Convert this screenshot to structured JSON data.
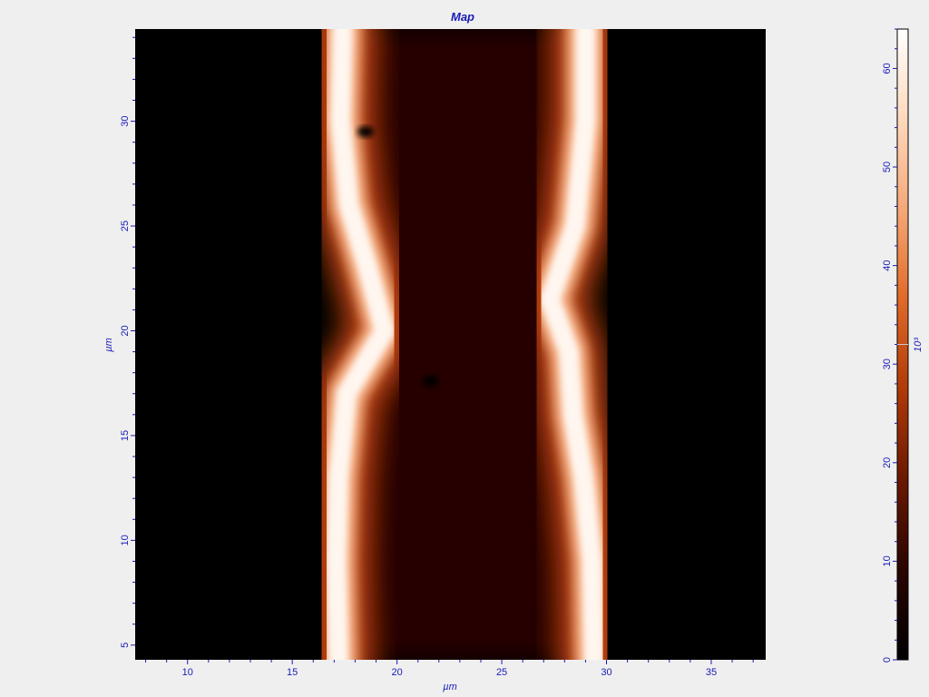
{
  "chart_data": {
    "type": "heatmap",
    "title": "Map",
    "xlabel": "µm",
    "ylabel": "µm",
    "xlim": [
      7.5,
      37.6
    ],
    "ylim": [
      4.3,
      34.4
    ],
    "x_ticks": [
      10,
      15,
      20,
      25,
      30,
      35
    ],
    "y_ticks": [
      5,
      10,
      15,
      20,
      25,
      30
    ],
    "colorbar": {
      "label": "10³",
      "range": [
        0,
        64
      ],
      "ticks": [
        0,
        10,
        20,
        30,
        40,
        50,
        60
      ],
      "marker_value": 32,
      "colormap": [
        "#000000",
        "#2a0500",
        "#6a1800",
        "#b03a08",
        "#e06a28",
        "#f5a878",
        "#ffd8bc",
        "#ffffff"
      ]
    },
    "features": {
      "left_band_center_x": [
        {
          "y": 4.3,
          "x": 17.2
        },
        {
          "y": 9,
          "x": 17.1
        },
        {
          "y": 13,
          "x": 17.2
        },
        {
          "y": 17,
          "x": 17.6
        },
        {
          "y": 20,
          "x": 19.4
        },
        {
          "y": 23,
          "x": 18.6
        },
        {
          "y": 26,
          "x": 17.7
        },
        {
          "y": 30,
          "x": 17.3
        },
        {
          "y": 34.4,
          "x": 17.4
        }
      ],
      "right_band_center_x": [
        {
          "y": 4.3,
          "x": 29.4
        },
        {
          "y": 9,
          "x": 29.3
        },
        {
          "y": 13,
          "x": 28.9
        },
        {
          "y": 16,
          "x": 28.4
        },
        {
          "y": 19,
          "x": 28.2
        },
        {
          "y": 21.5,
          "x": 27.3
        },
        {
          "y": 25,
          "x": 28.5
        },
        {
          "y": 30,
          "x": 29.0
        },
        {
          "y": 34.4,
          "x": 29.0
        }
      ],
      "band_peak_value": 62,
      "gap_value": 8,
      "background_value": 0,
      "dark_spots": [
        {
          "x": 18.5,
          "y": 29.5
        },
        {
          "x": 21.6,
          "y": 17.6
        }
      ]
    }
  }
}
